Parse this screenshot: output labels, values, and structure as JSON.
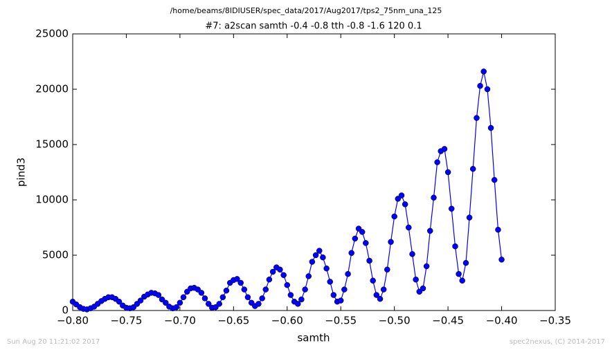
{
  "chart_data": {
    "type": "line",
    "suptitle": "/home/beams/8IDIUSER/spec_data/2017/Aug2017/tps2_75nm_una_125",
    "title": "#7: a2scan  samth -0.4 -0.8  tth -0.8 -1.6  120 0.1",
    "xlabel": "samth",
    "ylabel": "pind3",
    "footer_left": "Sun Aug 20 11:21:02 2017",
    "footer_right": "spec2nexus, (C) 2014-2017",
    "xlim": [
      -0.8,
      -0.35
    ],
    "ylim": [
      0,
      25000
    ],
    "xticks": [
      {
        "value": -0.8,
        "label": "−0.80"
      },
      {
        "value": -0.75,
        "label": "−0.75"
      },
      {
        "value": -0.7,
        "label": "−0.70"
      },
      {
        "value": -0.65,
        "label": "−0.65"
      },
      {
        "value": -0.6,
        "label": "−0.60"
      },
      {
        "value": -0.55,
        "label": "−0.55"
      },
      {
        "value": -0.5,
        "label": "−0.50"
      },
      {
        "value": -0.45,
        "label": "−0.45"
      },
      {
        "value": -0.4,
        "label": "−0.40"
      },
      {
        "value": -0.35,
        "label": "−0.35"
      }
    ],
    "yticks": [
      0,
      5000,
      10000,
      15000,
      20000,
      25000
    ],
    "x": [
      -0.8,
      -0.7967,
      -0.7933,
      -0.79,
      -0.7867,
      -0.7833,
      -0.78,
      -0.7767,
      -0.7733,
      -0.77,
      -0.7667,
      -0.7633,
      -0.76,
      -0.7567,
      -0.7533,
      -0.75,
      -0.7467,
      -0.7433,
      -0.74,
      -0.7367,
      -0.7333,
      -0.73,
      -0.7267,
      -0.7233,
      -0.72,
      -0.7167,
      -0.7133,
      -0.71,
      -0.7067,
      -0.7033,
      -0.7,
      -0.6967,
      -0.6933,
      -0.69,
      -0.6867,
      -0.6833,
      -0.68,
      -0.6767,
      -0.6733,
      -0.67,
      -0.6667,
      -0.6633,
      -0.66,
      -0.6567,
      -0.6533,
      -0.65,
      -0.6467,
      -0.6433,
      -0.64,
      -0.6367,
      -0.6333,
      -0.63,
      -0.6267,
      -0.6233,
      -0.62,
      -0.6167,
      -0.6133,
      -0.61,
      -0.6067,
      -0.6033,
      -0.6,
      -0.5967,
      -0.5933,
      -0.59,
      -0.5867,
      -0.5833,
      -0.58,
      -0.5767,
      -0.5733,
      -0.57,
      -0.5667,
      -0.5633,
      -0.56,
      -0.5567,
      -0.5533,
      -0.55,
      -0.5467,
      -0.5433,
      -0.54,
      -0.5367,
      -0.5333,
      -0.53,
      -0.5267,
      -0.5233,
      -0.52,
      -0.5167,
      -0.5133,
      -0.51,
      -0.5067,
      -0.5033,
      -0.5,
      -0.4967,
      -0.4933,
      -0.49,
      -0.4867,
      -0.4833,
      -0.48,
      -0.4767,
      -0.4733,
      -0.47,
      -0.4667,
      -0.4633,
      -0.46,
      -0.4567,
      -0.4533,
      -0.45,
      -0.4467,
      -0.4433,
      -0.44,
      -0.4367,
      -0.4333,
      -0.43,
      -0.4267,
      -0.4233,
      -0.42,
      -0.4167,
      -0.4133,
      -0.41,
      -0.4067,
      -0.4033,
      -0.4
    ],
    "series": [
      {
        "name": "pind3",
        "color": "#0000ff",
        "values": [
          800,
          550,
          300,
          150,
          100,
          200,
          350,
          600,
          850,
          1050,
          1200,
          1200,
          1050,
          800,
          450,
          250,
          200,
          300,
          600,
          900,
          1250,
          1450,
          1600,
          1550,
          1400,
          1000,
          700,
          350,
          200,
          300,
          700,
          1200,
          1700,
          2000,
          2050,
          1900,
          1600,
          1100,
          600,
          250,
          300,
          600,
          1200,
          1800,
          2500,
          2750,
          2850,
          2500,
          1900,
          1200,
          700,
          400,
          600,
          1100,
          1900,
          2800,
          3500,
          3900,
          3700,
          3200,
          2300,
          1400,
          800,
          600,
          1000,
          1900,
          3100,
          4400,
          5000,
          5400,
          4800,
          3800,
          2600,
          1400,
          800,
          900,
          1900,
          3300,
          5200,
          6500,
          7400,
          7100,
          6100,
          4500,
          2700,
          1400,
          1050,
          1900,
          3700,
          6200,
          8500,
          10100,
          10400,
          9600,
          7500,
          5100,
          2800,
          1700,
          2000,
          4000,
          7200,
          10200,
          13400,
          14400,
          14600,
          12500,
          9200,
          5800,
          3300,
          2700,
          4300,
          8400,
          12800,
          17400,
          20300,
          21600,
          20000,
          16500,
          11800,
          7300,
          4600
        ]
      }
    ]
  }
}
